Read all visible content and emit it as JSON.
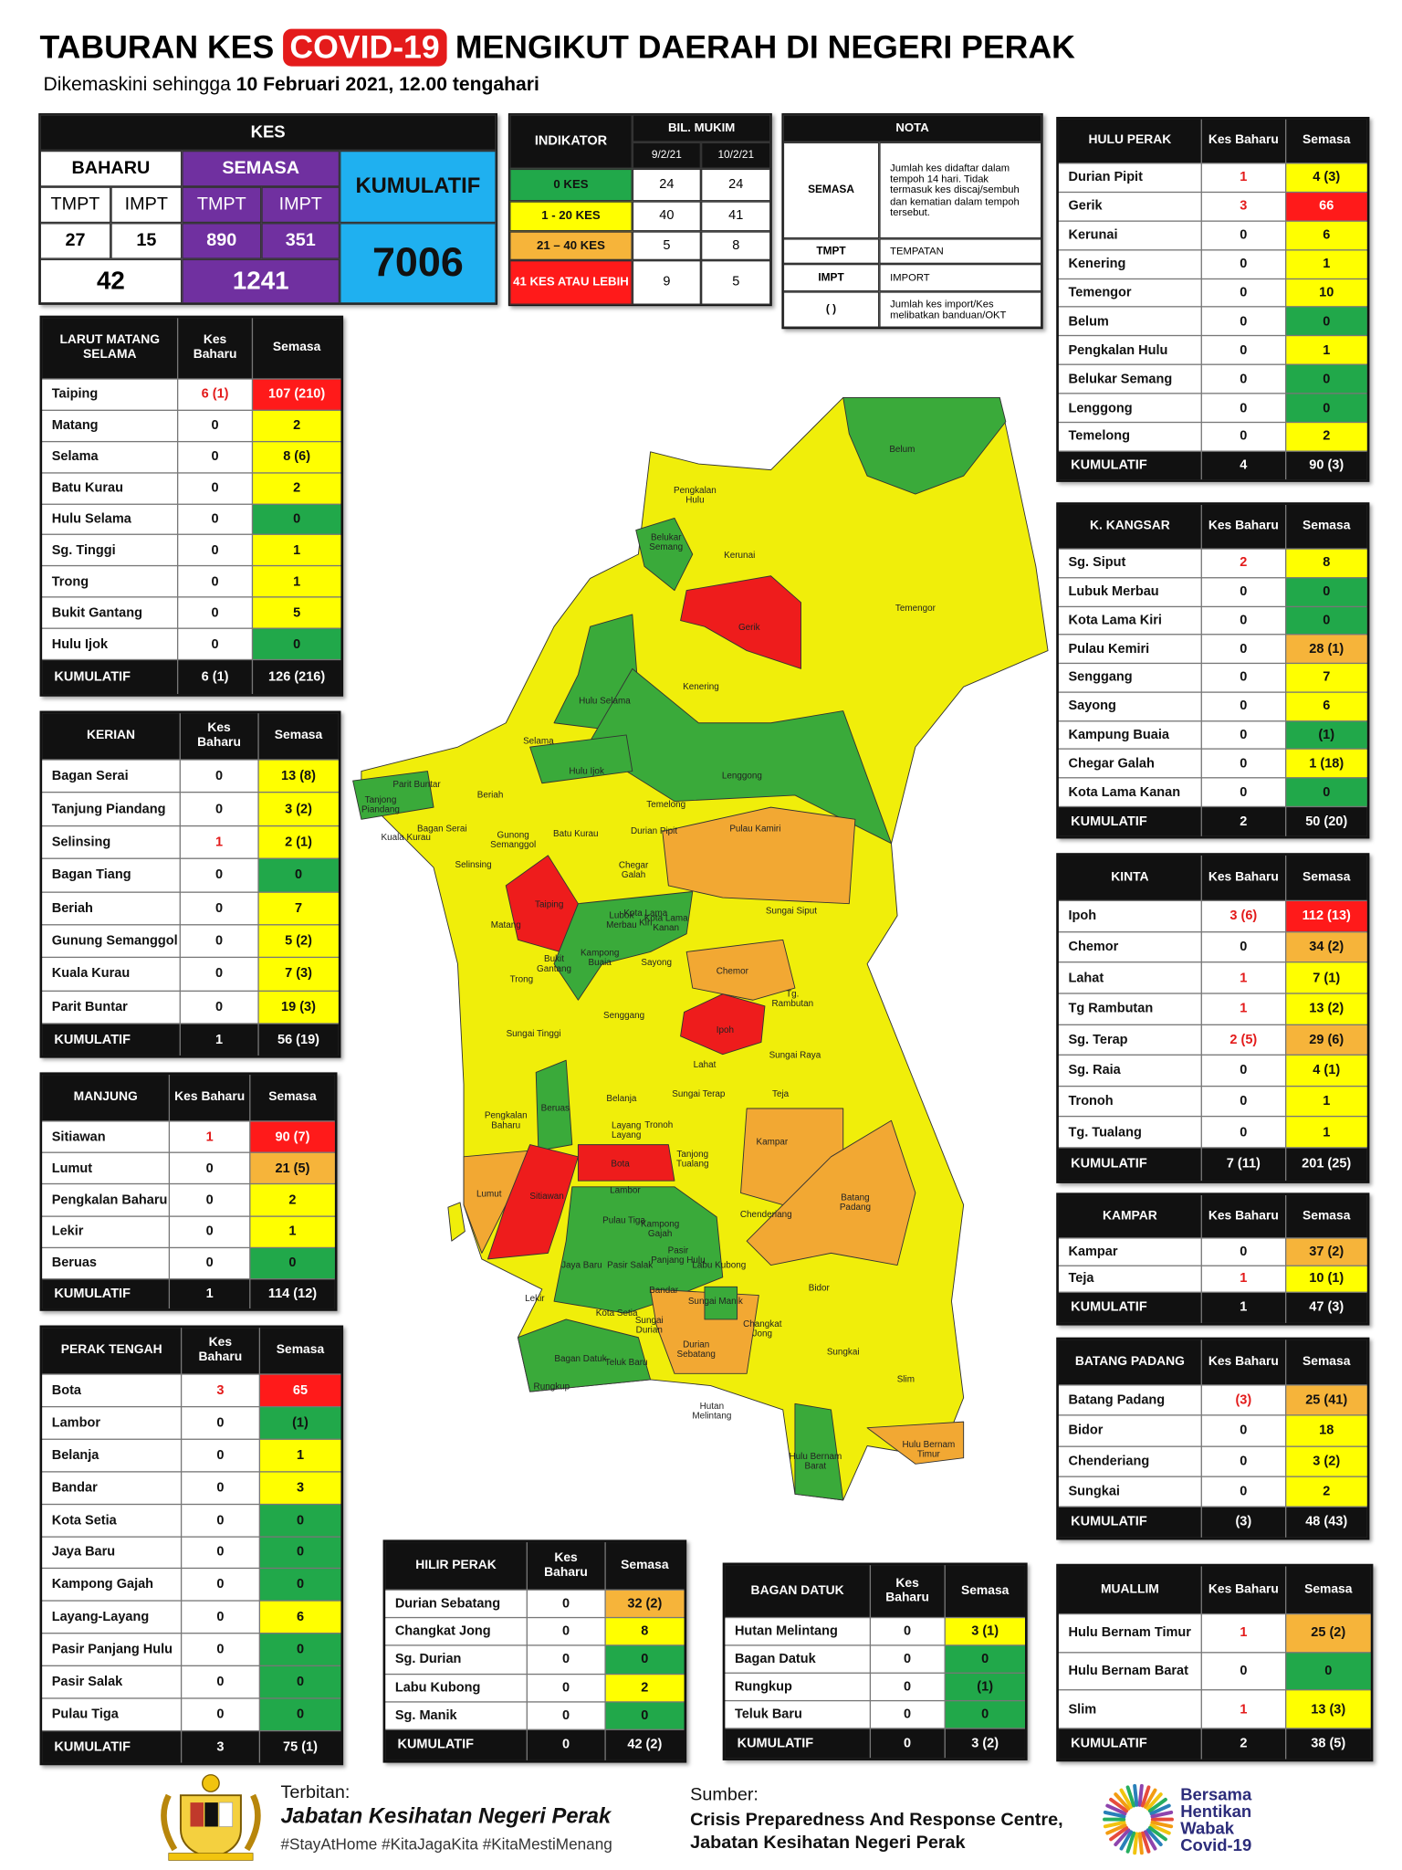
{
  "header": {
    "title_pre": "TABURAN KES",
    "title_highlight": "COVID-19",
    "title_post": "MENGIKUT DAERAH DI NEGERI PERAK",
    "subtitle_pre": "Dikemaskini sehingga",
    "subtitle_date": "10 Februari 2021, 12.00 tengahari"
  },
  "kes": {
    "title": "KES",
    "baharu": "BAHARU",
    "semasa": "SEMASA",
    "kumulatif": "KUMULATIF",
    "tmpt": "TMPT",
    "impt": "IMPT",
    "baharu_tmpt": "27",
    "baharu_impt": "15",
    "semasa_tmpt": "890",
    "semasa_impt": "351",
    "baharu_total": "42",
    "semasa_total": "1241",
    "kumulatif_total": "7006"
  },
  "indikator": {
    "title": "INDIKATOR",
    "bil": "BIL. MUKIM",
    "dates": [
      "9/2/21",
      "10/2/21"
    ],
    "rows": [
      {
        "label": "0 KES",
        "color": "green",
        "values": [
          "24",
          "24"
        ]
      },
      {
        "label": "1 - 20 KES",
        "color": "yellow",
        "values": [
          "40",
          "41"
        ]
      },
      {
        "label": "21 – 40 KES",
        "color": "orange",
        "values": [
          "5",
          "8"
        ]
      },
      {
        "label": "41 KES ATAU LEBIH",
        "color": "red",
        "values": [
          "9",
          "5"
        ]
      }
    ]
  },
  "nota": {
    "title": "NOTA",
    "rows": [
      [
        "SEMASA",
        "Jumlah kes didaftar dalam tempoh 14 hari. Tidak termasuk kes discaj/sembuh dan kematian dalam tempoh tersebut."
      ],
      [
        "TMPT",
        "TEMPATAN"
      ],
      [
        "IMPT",
        "IMPORT"
      ],
      [
        "(   )",
        "Jumlah kes import/Kes melibatkan banduan/OKT"
      ]
    ]
  },
  "tables": [
    {
      "title": "LARUT MATANG SELAMA",
      "baharu_header": "Kes Baharu",
      "semasa_header": "Semasa",
      "rows": [
        [
          "Taiping",
          "6 (1)",
          "107 (210)",
          "red"
        ],
        [
          "Matang",
          "0",
          "2",
          "yellow"
        ],
        [
          "Selama",
          "0",
          "8 (6)",
          "yellow"
        ],
        [
          "Batu Kurau",
          "0",
          "2",
          "yellow"
        ],
        [
          "Hulu Selama",
          "0",
          "0",
          "green"
        ],
        [
          "Sg. Tinggi",
          "0",
          "1",
          "yellow"
        ],
        [
          "Trong",
          "0",
          "1",
          "yellow"
        ],
        [
          "Bukit Gantang",
          "0",
          "5",
          "yellow"
        ],
        [
          "Hulu Ijok",
          "0",
          "0",
          "green"
        ]
      ],
      "total_label": "KUMULATIF",
      "total": [
        "6 (1)",
        "126 (216)"
      ]
    },
    {
      "title": "KERIAN",
      "baharu_header": "Kes Baharu",
      "semasa_header": "Semasa",
      "rows": [
        [
          "Bagan Serai",
          "0",
          "13 (8)",
          "yellow"
        ],
        [
          "Tanjung Piandang",
          "0",
          "3 (2)",
          "yellow"
        ],
        [
          "Selinsing",
          "1",
          "2 (1)",
          "yellow"
        ],
        [
          "Bagan Tiang",
          "0",
          "0",
          "green"
        ],
        [
          "Beriah",
          "0",
          "7",
          "yellow"
        ],
        [
          "Gunung Semanggol",
          "0",
          "5 (2)",
          "yellow"
        ],
        [
          "Kuala Kurau",
          "0",
          "7 (3)",
          "yellow"
        ],
        [
          "Parit Buntar",
          "0",
          "19 (3)",
          "yellow"
        ]
      ],
      "total_label": "KUMULATIF",
      "total": [
        "1",
        "56 (19)"
      ]
    },
    {
      "title": "MANJUNG",
      "baharu_header": "Kes Baharu",
      "semasa_header": "Semasa",
      "rows": [
        [
          "Sitiawan",
          "1",
          "90 (7)",
          "red"
        ],
        [
          "Lumut",
          "0",
          "21 (5)",
          "orange"
        ],
        [
          "Pengkalan Baharu",
          "0",
          "2",
          "yellow"
        ],
        [
          "Lekir",
          "0",
          "1",
          "yellow"
        ],
        [
          "Beruas",
          "0",
          "0",
          "green"
        ]
      ],
      "total_label": "KUMULATIF",
      "total": [
        "1",
        "114 (12)"
      ]
    },
    {
      "title": "PERAK TENGAH",
      "baharu_header": "Kes Baharu",
      "semasa_header": "Semasa",
      "rows": [
        [
          "Bota",
          "3",
          "65",
          "red"
        ],
        [
          "Lambor",
          "0",
          "(1)",
          "green"
        ],
        [
          "Belanja",
          "0",
          "1",
          "yellow"
        ],
        [
          "Bandar",
          "0",
          "3",
          "yellow"
        ],
        [
          "Kota Setia",
          "0",
          "0",
          "green"
        ],
        [
          "Jaya Baru",
          "0",
          "0",
          "green"
        ],
        [
          "Kampong Gajah",
          "0",
          "0",
          "green"
        ],
        [
          "Layang-Layang",
          "0",
          "6",
          "yellow"
        ],
        [
          "Pasir Panjang Hulu",
          "0",
          "0",
          "green"
        ],
        [
          "Pasir Salak",
          "0",
          "0",
          "green"
        ],
        [
          "Pulau Tiga",
          "0",
          "0",
          "green"
        ]
      ],
      "total_label": "KUMULATIF",
      "total": [
        "3",
        "75 (1)"
      ]
    },
    {
      "title": "HULU PERAK",
      "baharu_header": "Kes Baharu",
      "semasa_header": "Semasa",
      "rows": [
        [
          "Durian Pipit",
          "1",
          "4 (3)",
          "yellow"
        ],
        [
          "Gerik",
          "3",
          "66",
          "red"
        ],
        [
          "Kerunai",
          "0",
          "6",
          "yellow"
        ],
        [
          "Kenering",
          "0",
          "1",
          "yellow"
        ],
        [
          "Temengor",
          "0",
          "10",
          "yellow"
        ],
        [
          "Belum",
          "0",
          "0",
          "green"
        ],
        [
          "Pengkalan Hulu",
          "0",
          "1",
          "yellow"
        ],
        [
          "Belukar Semang",
          "0",
          "0",
          "green"
        ],
        [
          "Lenggong",
          "0",
          "0",
          "green"
        ],
        [
          "Temelong",
          "0",
          "2",
          "yellow"
        ]
      ],
      "total_label": "KUMULATIF",
      "total": [
        "4",
        "90 (3)"
      ]
    },
    {
      "title": "K. KANGSAR",
      "baharu_header": "Kes Baharu",
      "semasa_header": "Semasa",
      "rows": [
        [
          "Sg. Siput",
          "2",
          "8",
          "yellow"
        ],
        [
          "Lubuk Merbau",
          "0",
          "0",
          "green"
        ],
        [
          "Kota Lama Kiri",
          "0",
          "0",
          "green"
        ],
        [
          "Pulau Kemiri",
          "0",
          "28 (1)",
          "orange"
        ],
        [
          "Senggang",
          "0",
          "7",
          "yellow"
        ],
        [
          "Sayong",
          "0",
          "6",
          "yellow"
        ],
        [
          "Kampung Buaia",
          "0",
          "(1)",
          "green"
        ],
        [
          "Chegar Galah",
          "0",
          "1 (18)",
          "yellow"
        ],
        [
          "Kota Lama Kanan",
          "0",
          "0",
          "green"
        ]
      ],
      "total_label": "KUMULATIF",
      "total": [
        "2",
        "50 (20)"
      ]
    },
    {
      "title": "KINTA",
      "baharu_header": "Kes Baharu",
      "semasa_header": "Semasa",
      "rows": [
        [
          "Ipoh",
          "3 (6)",
          "112 (13)",
          "red"
        ],
        [
          "Chemor",
          "0",
          "34 (2)",
          "orange"
        ],
        [
          "Lahat",
          "1",
          "7 (1)",
          "yellow"
        ],
        [
          "Tg Rambutan",
          "1",
          "13 (2)",
          "yellow"
        ],
        [
          "Sg. Terap",
          "2 (5)",
          "29 (6)",
          "orange"
        ],
        [
          "Sg. Raia",
          "0",
          "4 (1)",
          "yellow"
        ],
        [
          "Tronoh",
          "0",
          "1",
          "yellow"
        ],
        [
          "Tg. Tualang",
          "0",
          "1",
          "yellow"
        ]
      ],
      "total_label": "KUMULATIF",
      "total": [
        "7 (11)",
        "201 (25)"
      ]
    },
    {
      "title": "KAMPAR",
      "baharu_header": "Kes Baharu",
      "semasa_header": "Semasa",
      "rows": [
        [
          "Kampar",
          "0",
          "37 (2)",
          "orange"
        ],
        [
          "Teja",
          "1",
          "10 (1)",
          "yellow"
        ]
      ],
      "total_label": "KUMULATIF",
      "total": [
        "1",
        "47 (3)"
      ]
    },
    {
      "title": "BATANG PADANG",
      "baharu_header": "Kes Baharu",
      "semasa_header": "Semasa",
      "rows": [
        [
          "Batang Padang",
          "(3)",
          "25 (41)",
          "orange"
        ],
        [
          "Bidor",
          "0",
          "18",
          "yellow"
        ],
        [
          "Chenderiang",
          "0",
          "3 (2)",
          "yellow"
        ],
        [
          "Sungkai",
          "0",
          "2",
          "yellow"
        ]
      ],
      "total_label": "KUMULATIF",
      "total": [
        "(3)",
        "48 (43)"
      ]
    },
    {
      "title": "MUALLIM",
      "baharu_header": "Kes Baharu",
      "semasa_header": "Semasa",
      "rows": [
        [
          "Hulu Bernam Timur",
          "1",
          "25 (2)",
          "orange"
        ],
        [
          "Hulu Bernam Barat",
          "0",
          "0",
          "green"
        ],
        [
          "Slim",
          "1",
          "13 (3)",
          "yellow"
        ]
      ],
      "total_label": "KUMULATIF",
      "total": [
        "2",
        "38 (5)"
      ]
    },
    {
      "title": "HILIR PERAK",
      "baharu_header": "Kes Baharu",
      "semasa_header": "Semasa",
      "rows": [
        [
          "Durian Sebatang",
          "0",
          "32 (2)",
          "orange"
        ],
        [
          "Changkat Jong",
          "0",
          "8",
          "yellow"
        ],
        [
          "Sg. Durian",
          "0",
          "0",
          "green"
        ],
        [
          "Labu Kubong",
          "0",
          "2",
          "yellow"
        ],
        [
          "Sg. Manik",
          "0",
          "0",
          "green"
        ]
      ],
      "total_label": "KUMULATIF",
      "total": [
        "0",
        "42 (2)"
      ]
    },
    {
      "title": "BAGAN DATUK",
      "baharu_header": "Kes Baharu",
      "semasa_header": "Semasa",
      "rows": [
        [
          "Hutan Melintang",
          "0",
          "3 (1)",
          "yellow"
        ],
        [
          "Bagan Datuk",
          "0",
          "0",
          "green"
        ],
        [
          "Rungkup",
          "0",
          "(1)",
          "green"
        ],
        [
          "Teluk Baru",
          "0",
          "0",
          "green"
        ]
      ],
      "total_label": "KUMULATIF",
      "total": [
        "0",
        "3 (2)"
      ]
    }
  ],
  "map": {
    "labels": [
      "Belum",
      "Pengkalan Hulu",
      "Belukar Semang",
      "Kerunai",
      "Gerik",
      "Temengor",
      "Kenering",
      "Hulu Selama",
      "Selama",
      "Hulu Ijok",
      "Lenggong",
      "Tanjong Piandang",
      "Parit Buntar",
      "Beriah",
      "Temelong",
      "Bagan Serai",
      "Kuala Kurau",
      "Gunong Semanggol",
      "Batu Kurau",
      "Durian Pipit",
      "Pulau Kamiri",
      "Selinsing",
      "Chegar Galah",
      "Taiping",
      "Matang",
      "Lubok Merbau",
      "Kota Lama Kiri",
      "Kota Lama Kanan",
      "Sungai Siput",
      "Kampong Buaia",
      "Bukit Gantang",
      "Sayong",
      "Chemor",
      "Trong",
      "Tg. Rambutan",
      "Senggang",
      "Ipoh",
      "Sungai Tinggi",
      "Sungai Raya",
      "Lahat",
      "Sungai Terap",
      "Teja",
      "Pengkalan Baharu",
      "Beruas",
      "Belanja",
      "Tronoh",
      "Layang Layang",
      "Bota",
      "Tanjong Tualang",
      "Kampar",
      "Lumut",
      "Sitiawan",
      "Lambor",
      "Batang Padang",
      "Chenderiang",
      "Pulau Tiga",
      "Kampong Gajah",
      "Pasir Panjang Hulu",
      "Jaya Baru",
      "Pasir Salak",
      "Labu Kubong",
      "Bidor",
      "Bandar",
      "Sungai Manik",
      "Lekir",
      "Kota Setia",
      "Sungai Durian",
      "Changkat Jong",
      "Durian Sebatang",
      "Bagan Datuk",
      "Teluk Baru",
      "Sungkai",
      "Rungkup",
      "Slim",
      "Hutan Melintang",
      "Hulu Bernam Timur",
      "Hulu Bernam Barat"
    ]
  },
  "footer": {
    "published_label": "Terbitan:",
    "publisher": "Jabatan Kesihatan Negeri Perak",
    "hashtags": "#StayAtHome #KitaJagaKita #KitaMestiMenang",
    "source_label": "Sumber:",
    "source_1": "Crisis Preparedness And Response Centre,",
    "source_2": "Jabatan Kesihatan Negeri Perak",
    "slogan": [
      "Bersama",
      "Hentikan",
      "Wabak",
      "Covid-19"
    ]
  }
}
